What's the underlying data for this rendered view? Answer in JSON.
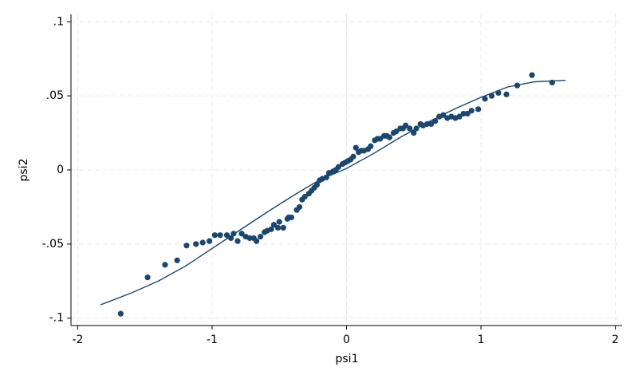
{
  "chart_data": {
    "type": "scatter",
    "x_label": "psi1",
    "y_label": "psi2",
    "xlim": [
      -2.05,
      2.05
    ],
    "ylim": [
      -0.105,
      0.105
    ],
    "xticks": [
      -2,
      -1,
      0,
      1,
      2
    ],
    "yticks": [
      {
        "value": -0.1,
        "label": "-.1"
      },
      {
        "value": -0.05,
        "label": "-.05"
      },
      {
        "value": 0,
        "label": "0"
      },
      {
        "value": 0.05,
        "label": ".05"
      },
      {
        "value": 0.1,
        "label": ".1"
      }
    ],
    "grid": true,
    "series": [
      {
        "mode": "markers",
        "color": "#1a476f",
        "x": [
          -1.68,
          -1.48,
          -1.35,
          -1.26,
          -1.19,
          -1.12,
          -1.07,
          -1.02,
          -0.98,
          -0.94,
          -0.89,
          -0.86,
          -0.84,
          -0.81,
          -0.78,
          -0.75,
          -0.72,
          -0.69,
          -0.67,
          -0.64,
          -0.61,
          -0.59,
          -0.56,
          -0.54,
          -0.51,
          -0.5,
          -0.47,
          -0.44,
          -0.43,
          -0.41,
          -0.37,
          -0.35,
          -0.33,
          -0.31,
          -0.28,
          -0.26,
          -0.24,
          -0.22,
          -0.2,
          -0.18,
          -0.15,
          -0.13,
          -0.1,
          -0.08,
          -0.06,
          -0.03,
          -0.01,
          0.01,
          0.03,
          0.05,
          0.07,
          0.09,
          0.11,
          0.13,
          0.16,
          0.18,
          0.21,
          0.23,
          0.25,
          0.28,
          0.3,
          0.32,
          0.35,
          0.37,
          0.4,
          0.42,
          0.44,
          0.47,
          0.5,
          0.52,
          0.55,
          0.57,
          0.6,
          0.63,
          0.66,
          0.69,
          0.72,
          0.75,
          0.78,
          0.81,
          0.84,
          0.87,
          0.9,
          0.93,
          0.98,
          1.03,
          1.08,
          1.13,
          1.19,
          1.27,
          1.38,
          1.53
        ],
        "y": [
          -0.097,
          -0.0725,
          -0.064,
          -0.061,
          -0.051,
          -0.05,
          -0.049,
          -0.048,
          -0.044,
          -0.044,
          -0.044,
          -0.046,
          -0.043,
          -0.048,
          -0.043,
          -0.045,
          -0.046,
          -0.046,
          -0.048,
          -0.045,
          -0.042,
          -0.041,
          -0.04,
          -0.037,
          -0.039,
          -0.035,
          -0.039,
          -0.033,
          -0.032,
          -0.032,
          -0.027,
          -0.025,
          -0.02,
          -0.018,
          -0.016,
          -0.014,
          -0.012,
          -0.01,
          -0.007,
          -0.006,
          -0.005,
          -0.002,
          -0.001,
          0,
          0.002,
          0.004,
          0.005,
          0.006,
          0.007,
          0.009,
          0.015,
          0.012,
          0.013,
          0.013,
          0.014,
          0.016,
          0.02,
          0.021,
          0.021,
          0.023,
          0.023,
          0.022,
          0.025,
          0.026,
          0.028,
          0.028,
          0.03,
          0.028,
          0.025,
          0.028,
          0.031,
          0.03,
          0.031,
          0.031,
          0.033,
          0.036,
          0.037,
          0.035,
          0.036,
          0.035,
          0.036,
          0.038,
          0.038,
          0.04,
          0.041,
          0.048,
          0.05,
          0.052,
          0.051,
          0.057,
          0.064,
          0.059
        ]
      },
      {
        "mode": "lines",
        "color": "#1a476f",
        "x": [
          -1.83,
          -1.6,
          -1.4,
          -1.2,
          -1.0,
          -0.8,
          -0.6,
          -0.4,
          -0.2,
          0,
          0.2,
          0.4,
          0.6,
          0.8,
          1.0,
          1.2,
          1.4,
          1.63
        ],
        "y": [
          -0.091,
          -0.083,
          -0.075,
          -0.065,
          -0.053,
          -0.041,
          -0.029,
          -0.0175,
          -0.0067,
          0.001,
          0.011,
          0.022,
          0.032,
          0.041,
          0.049,
          0.056,
          0.0595,
          0.0605
        ]
      }
    ]
  }
}
